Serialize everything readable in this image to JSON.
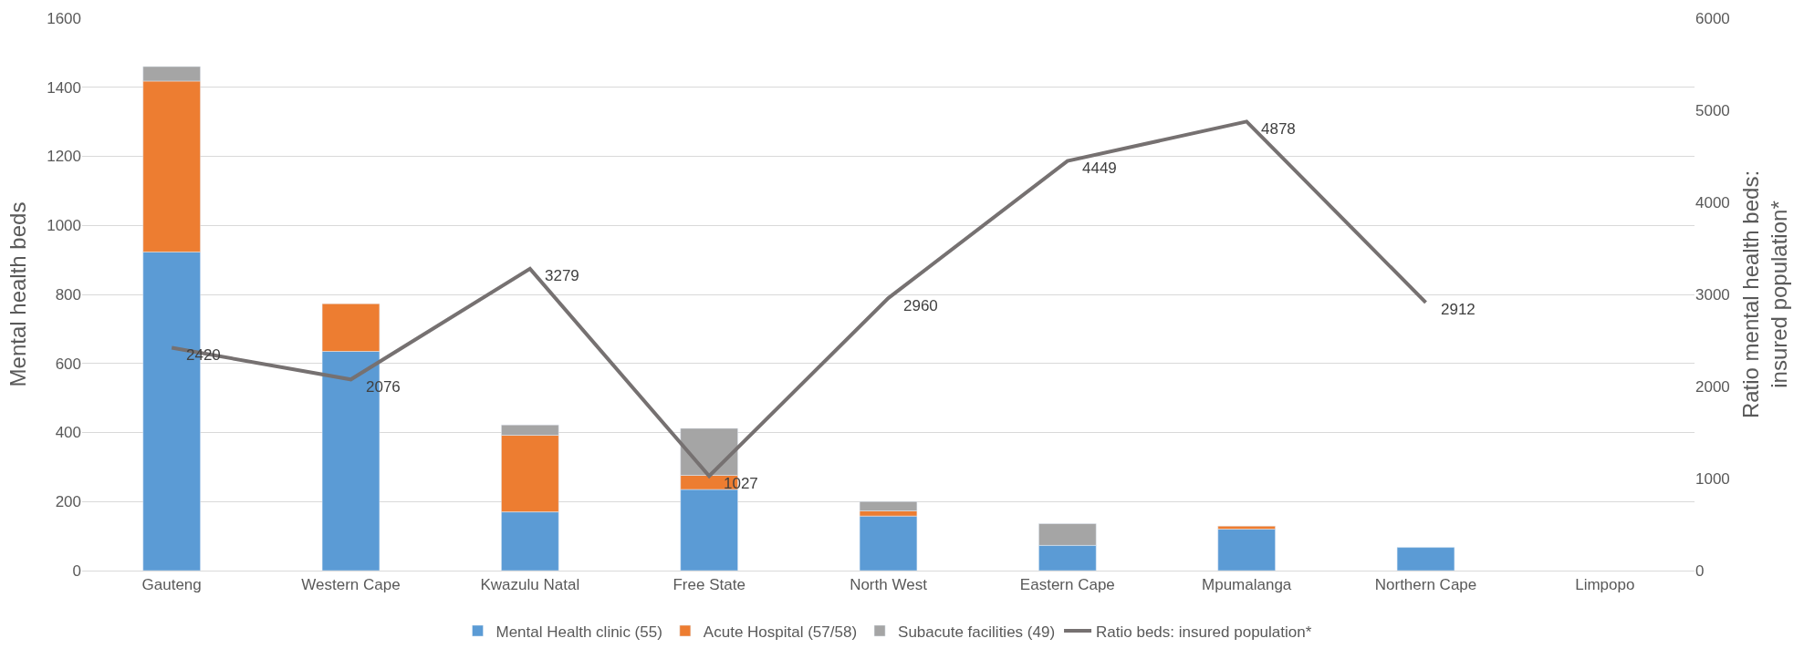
{
  "chart_data": {
    "type": "bar",
    "stacked": true,
    "ylabel": "Mental health beds",
    "y2label": "Ratio mental health beds:\ninsured population*",
    "categories": [
      "Gauteng",
      "Western Cape",
      "Kwazulu Natal",
      "Free State",
      "North West",
      "Eastern Cape",
      "Mpumalanga",
      "Northern Cape",
      "Limpopo"
    ],
    "series": [
      {
        "name": "Mental Health clinic (55)",
        "color": "#5b9bd5",
        "values": [
          923,
          635,
          170,
          235,
          158,
          73,
          120,
          67,
          null
        ]
      },
      {
        "name": "Acute Hospital (57/58)",
        "color": "#ed7d31",
        "values": [
          495,
          138,
          222,
          41,
          15,
          null,
          9,
          null,
          null
        ]
      },
      {
        "name": "Subacute facilities (49)",
        "color": "#a5a5a5",
        "values": [
          42,
          null,
          30,
          136,
          27,
          63,
          null,
          null,
          null
        ]
      },
      {
        "name": "Ratio beds: insured population*",
        "type": "line",
        "axis": "y2",
        "color": "#767171",
        "marker": "none",
        "values": [
          2420,
          2076,
          3279,
          1027,
          2960,
          4449,
          4878,
          2912,
          null
        ],
        "value_labels": [
          "2420",
          "2076",
          "3279",
          "1027",
          "2960",
          "4449",
          "4878",
          "2912",
          null
        ]
      }
    ],
    "ylim": [
      0,
      1600
    ],
    "yticks": [
      0,
      200,
      400,
      600,
      800,
      1000,
      1200,
      1400,
      1600
    ],
    "y2lim": [
      0,
      6000
    ],
    "y2ticks": [
      0,
      1000,
      2000,
      3000,
      4000,
      5000,
      6000
    ],
    "grid": "y",
    "legend": "bottom"
  }
}
